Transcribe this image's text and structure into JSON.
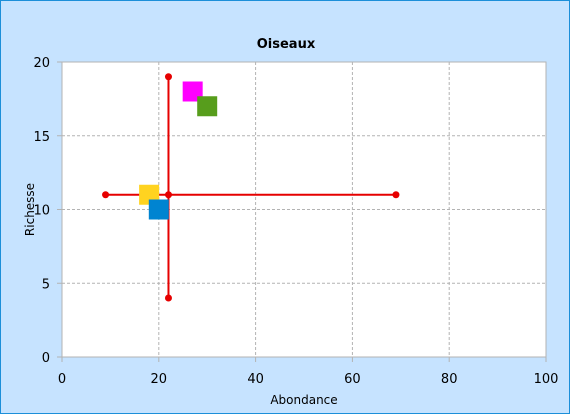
{
  "chart_data": {
    "type": "scatter",
    "title": "Oiseaux",
    "xlabel": "Abondance",
    "ylabel": "Richesse",
    "xlim": [
      0,
      100
    ],
    "ylim": [
      0,
      20
    ],
    "xticks": [
      0,
      20,
      40,
      60,
      80,
      100
    ],
    "yticks": [
      0,
      5,
      10,
      15,
      20
    ],
    "grid": true,
    "legend": "none",
    "points": [
      {
        "x": 18,
        "y": 11,
        "color": "#ffd320",
        "marker": "square"
      },
      {
        "x": 20,
        "y": 10,
        "color": "#0084d1",
        "marker": "square"
      },
      {
        "x": 27,
        "y": 18,
        "color": "#ff00ff",
        "marker": "square"
      },
      {
        "x": 30,
        "y": 17,
        "color": "#579d1c",
        "marker": "square"
      }
    ],
    "mean_cross": {
      "color": "#e60000",
      "center": {
        "x": 22,
        "y": 11
      },
      "x_range": [
        9,
        69
      ],
      "y_range": [
        4,
        19
      ]
    }
  },
  "colors": {
    "background": "#c6e3ff",
    "border": "#1c8fd9",
    "plot_area": "#ffffff",
    "grid": "#b3b3b3"
  }
}
